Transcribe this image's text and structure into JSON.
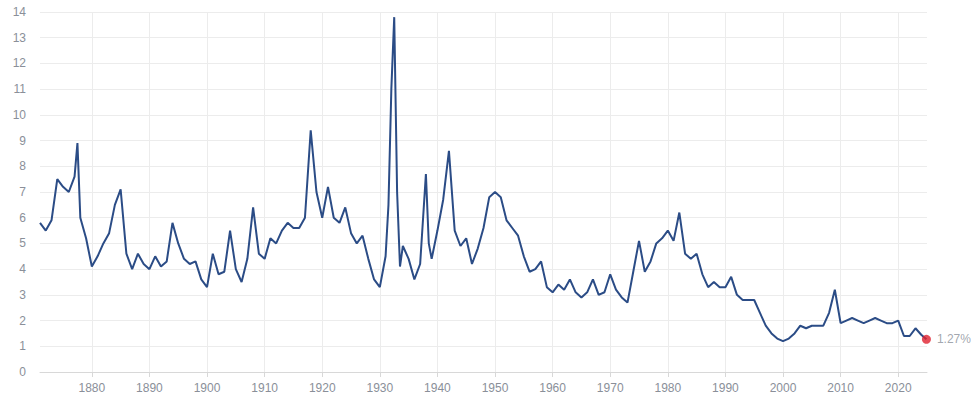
{
  "chart_data": {
    "type": "line",
    "color": "#2b4c86",
    "grid": true,
    "xlim": [
      1871,
      2025
    ],
    "xticks": [
      1880,
      1890,
      1900,
      1910,
      1920,
      1930,
      1940,
      1950,
      1960,
      1970,
      1980,
      1990,
      2000,
      2010,
      2020
    ],
    "ylim": [
      0,
      14
    ],
    "yticks": [
      0,
      1,
      2,
      3,
      4,
      5,
      6,
      7,
      8,
      9,
      10,
      11,
      12,
      13,
      14
    ],
    "x": [
      1871,
      1872,
      1873,
      1874,
      1875,
      1876,
      1877,
      1877.5,
      1878,
      1879,
      1880,
      1881,
      1882,
      1883,
      1884,
      1885,
      1886,
      1887,
      1888,
      1889,
      1890,
      1891,
      1892,
      1893,
      1894,
      1895,
      1896,
      1897,
      1898,
      1899,
      1900,
      1901,
      1902,
      1903,
      1904,
      1905,
      1906,
      1907,
      1908,
      1909,
      1910,
      1911,
      1912,
      1913,
      1914,
      1915,
      1916,
      1917,
      1918,
      1919,
      1920,
      1921,
      1922,
      1923,
      1924,
      1925,
      1926,
      1927,
      1928,
      1929,
      1930,
      1931,
      1931.5,
      1932,
      1932.5,
      1933,
      1933.5,
      1934,
      1935,
      1936,
      1937,
      1938,
      1938.5,
      1939,
      1940,
      1941,
      1942,
      1943,
      1944,
      1945,
      1946,
      1947,
      1948,
      1949,
      1950,
      1951,
      1952,
      1953,
      1954,
      1955,
      1956,
      1957,
      1958,
      1959,
      1960,
      1961,
      1962,
      1963,
      1964,
      1965,
      1966,
      1967,
      1968,
      1969,
      1970,
      1971,
      1972,
      1973,
      1974,
      1975,
      1976,
      1977,
      1978,
      1979,
      1980,
      1981,
      1982,
      1983,
      1984,
      1985,
      1986,
      1987,
      1988,
      1989,
      1990,
      1991,
      1992,
      1993,
      1994,
      1995,
      1996,
      1997,
      1998,
      1999,
      2000,
      2001,
      2002,
      2003,
      2004,
      2005,
      2006,
      2007,
      2008,
      2009,
      2010,
      2011,
      2012,
      2013,
      2014,
      2015,
      2016,
      2017,
      2018,
      2019,
      2020,
      2021,
      2022,
      2023,
      2024,
      2024.9
    ],
    "values": [
      5.8,
      5.5,
      5.9,
      7.5,
      7.2,
      7.0,
      7.6,
      8.9,
      6.0,
      5.2,
      4.1,
      4.5,
      5.0,
      5.4,
      6.5,
      7.1,
      4.6,
      4.0,
      4.6,
      4.2,
      4.0,
      4.5,
      4.1,
      4.3,
      5.8,
      5.0,
      4.4,
      4.2,
      4.3,
      3.6,
      3.3,
      4.6,
      3.8,
      3.9,
      5.5,
      4.0,
      3.5,
      4.4,
      6.4,
      4.6,
      4.4,
      5.2,
      5.0,
      5.5,
      5.8,
      5.6,
      5.6,
      6.0,
      9.4,
      7.0,
      6.0,
      7.2,
      6.0,
      5.8,
      6.4,
      5.4,
      5.0,
      5.3,
      4.4,
      3.6,
      3.3,
      4.5,
      6.5,
      11.0,
      13.8,
      7.0,
      4.1,
      4.9,
      4.4,
      3.6,
      4.2,
      7.7,
      5.0,
      4.4,
      5.5,
      6.7,
      8.6,
      5.5,
      4.9,
      5.2,
      4.2,
      4.8,
      5.6,
      6.8,
      7.0,
      6.8,
      5.9,
      5.6,
      5.3,
      4.5,
      3.9,
      4.0,
      4.3,
      3.3,
      3.1,
      3.4,
      3.2,
      3.6,
      3.1,
      2.9,
      3.1,
      3.6,
      3.0,
      3.1,
      3.8,
      3.2,
      2.9,
      2.7,
      3.9,
      5.1,
      3.9,
      4.3,
      5.0,
      5.2,
      5.5,
      5.1,
      6.2,
      4.6,
      4.4,
      4.6,
      3.8,
      3.3,
      3.5,
      3.3,
      3.3,
      3.7,
      3.0,
      2.8,
      2.8,
      2.8,
      2.3,
      1.8,
      1.5,
      1.3,
      1.2,
      1.3,
      1.5,
      1.8,
      1.7,
      1.8,
      1.8,
      1.8,
      2.3,
      3.2,
      1.9,
      2.0,
      2.1,
      2.0,
      1.9,
      2.0,
      2.1,
      2.0,
      1.9,
      1.9,
      2.0,
      1.4,
      1.4,
      1.7,
      1.45,
      1.27
    ],
    "annotations": [
      {
        "x": 2024.9,
        "y": 1.27,
        "text": "1.27%",
        "color": "#e0202e"
      }
    ]
  }
}
